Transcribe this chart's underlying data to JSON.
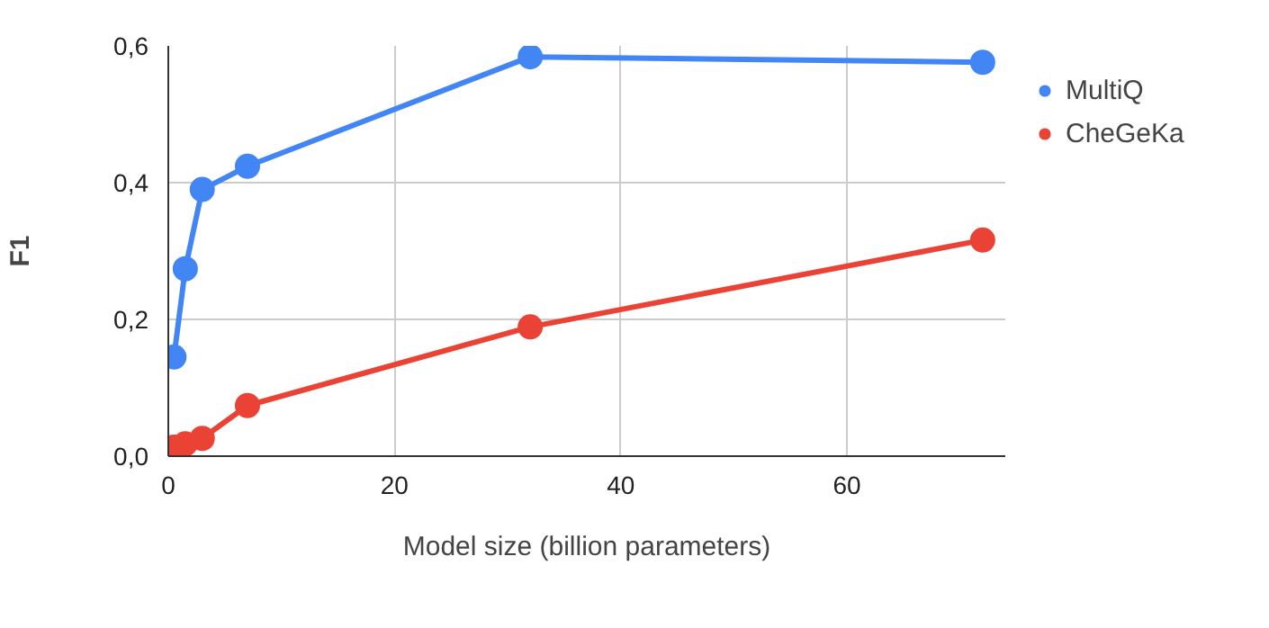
{
  "chart_data": {
    "type": "line",
    "xlabel": "Model size (billion parameters)",
    "ylabel": "F1",
    "xlim": [
      0,
      74
    ],
    "xticks": [
      0,
      20,
      40,
      60
    ],
    "ylim": [
      0,
      0.6
    ],
    "yticks": [
      {
        "value": 0,
        "label": "0,0"
      },
      {
        "value": 0.2,
        "label": "0,2"
      },
      {
        "value": 0.4,
        "label": "0,4"
      },
      {
        "value": 0.6,
        "label": "0,6"
      }
    ],
    "x": [
      0.5,
      1.5,
      3,
      7,
      32,
      72
    ],
    "series": [
      {
        "name": "MultiQ",
        "color": "#4285f4",
        "values": [
          0.145,
          0.274,
          0.39,
          0.424,
          0.584,
          0.576
        ]
      },
      {
        "name": "CheGeKa",
        "color": "#ea4335",
        "values": [
          0.013,
          0.018,
          0.026,
          0.074,
          0.189,
          0.316
        ]
      }
    ],
    "grid": true,
    "legend": "top right",
    "marker": "circle",
    "line_style": "solid"
  }
}
